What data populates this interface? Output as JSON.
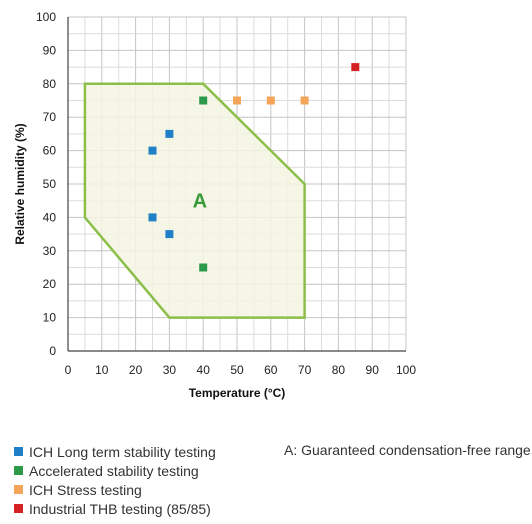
{
  "chart_data": {
    "type": "scatter",
    "xlabel": "Temperature (°C)",
    "ylabel": "Relative humidity (%)",
    "xlim": [
      0,
      100
    ],
    "ylim": [
      0,
      100
    ],
    "x_ticks": [
      0,
      10,
      20,
      30,
      40,
      50,
      60,
      70,
      80,
      90,
      100
    ],
    "y_ticks": [
      0,
      10,
      20,
      30,
      40,
      50,
      60,
      70,
      80,
      90,
      100
    ],
    "grid": true,
    "region": {
      "label": "A",
      "color": "#8cbf4a",
      "fill": "#f4f4e2",
      "polygon": [
        [
          5,
          80
        ],
        [
          40,
          80
        ],
        [
          70,
          50
        ],
        [
          70,
          10
        ],
        [
          30,
          10
        ],
        [
          5,
          40
        ]
      ],
      "label_at": [
        39,
        45
      ]
    },
    "series": [
      {
        "name": "ICH Long term stability testing",
        "color": "#1f80c8",
        "points": [
          [
            30,
            65
          ],
          [
            25,
            60
          ],
          [
            25,
            40
          ],
          [
            30,
            35
          ]
        ]
      },
      {
        "name": "Accelerated stability testing",
        "color": "#2c9a48",
        "points": [
          [
            40,
            75
          ],
          [
            40,
            25
          ]
        ]
      },
      {
        "name": "ICH Stress testing",
        "color": "#f4a55a",
        "points": [
          [
            50,
            75
          ],
          [
            60,
            75
          ],
          [
            70,
            75
          ]
        ]
      },
      {
        "name": "Industrial THB testing (85/85)",
        "color": "#d42222",
        "points": [
          [
            85,
            85
          ]
        ]
      }
    ],
    "legend_position": "bottom-left",
    "note": "A: Guaranteed condensation-free range"
  }
}
